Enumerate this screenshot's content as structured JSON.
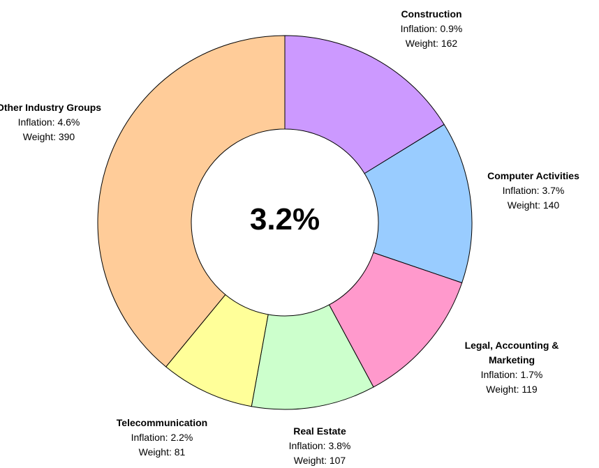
{
  "chart_data": {
    "type": "donut",
    "center_label": "3.2%",
    "categories": [
      "Construction",
      "Computer Activities",
      "Legal, Accounting & Marketing",
      "Real Estate",
      "Telecommunication",
      "Other Industry Groups"
    ],
    "values": [
      162,
      140,
      119,
      107,
      81,
      390
    ],
    "value_labels": [
      "Weight: 162",
      "Weight: 140",
      "Weight: 119",
      "Weight: 107",
      "Weight: 81",
      "Weight: 390"
    ],
    "inflation_labels": [
      "Inflation: 0.9%",
      "Inflation: 3.7%",
      "Inflation: 1.7%",
      "Inflation: 3.8%",
      "Inflation: 2.2%",
      "Inflation: 4.6%"
    ],
    "colors": [
      "#cc99ff",
      "#99ccff",
      "#ff99cc",
      "#ccffcc",
      "#ffff99",
      "#ffcc99"
    ]
  }
}
